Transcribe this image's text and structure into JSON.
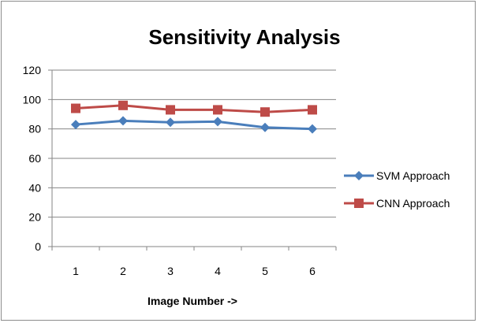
{
  "chart_data": {
    "type": "line",
    "title": "Sensitivity Analysis",
    "xlabel": "Image Number ->",
    "ylabel": "",
    "categories": [
      "1",
      "2",
      "3",
      "4",
      "5",
      "6"
    ],
    "ylim": [
      0,
      120
    ],
    "yticks": [
      0,
      20,
      40,
      60,
      80,
      100,
      120
    ],
    "grid": true,
    "legend_position": "right",
    "series": [
      {
        "name": "SVM Approach",
        "values": [
          83,
          85.5,
          84.5,
          85,
          81,
          80
        ],
        "color": "#4a7ebb",
        "marker": "diamond"
      },
      {
        "name": "CNN Approach",
        "values": [
          94,
          96,
          93,
          93,
          91.5,
          93
        ],
        "color": "#be4b48",
        "marker": "square"
      }
    ]
  }
}
